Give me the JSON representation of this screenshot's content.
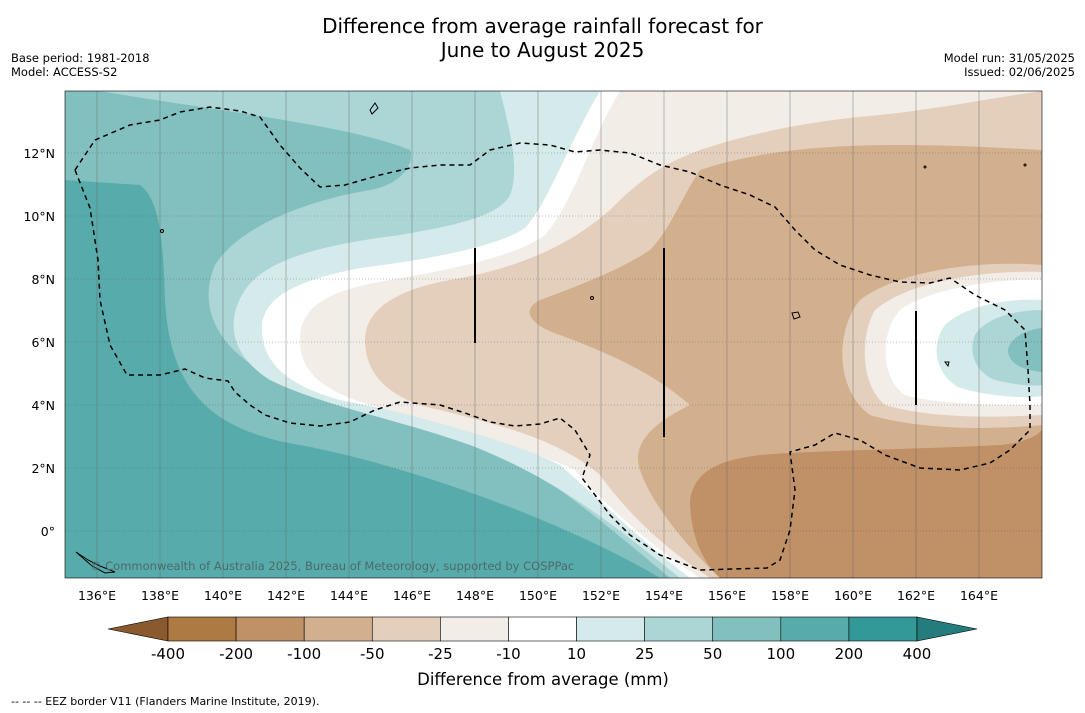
{
  "title_line1": "Difference from average rainfall forecast for",
  "title_line2": "June to August 2025",
  "meta": {
    "base_period": "Base period: 1981-2018",
    "model": "Model: ACCESS-S2",
    "model_run": "Model run: 31/05/2025",
    "issued": "Issued: 02/06/2025"
  },
  "map": {
    "x_ticks": [
      "136°E",
      "138°E",
      "140°E",
      "142°E",
      "144°E",
      "146°E",
      "148°E",
      "150°E",
      "152°E",
      "154°E",
      "156°E",
      "158°E",
      "160°E",
      "162°E",
      "164°E"
    ],
    "y_ticks": [
      "12°N",
      "10°N",
      "8°N",
      "6°N",
      "4°N",
      "2°N",
      "0°"
    ],
    "copyright": "© Commonwealth of Australia 2025, Bureau of Meteorology, supported by COSPPac"
  },
  "legend": {
    "ticks": [
      "-400",
      "-200",
      "-100",
      "-50",
      "-25",
      "-10",
      "10",
      "25",
      "50",
      "100",
      "200",
      "400"
    ],
    "colors": [
      "#8a5a2e",
      "#ae7a43",
      "#c09066",
      "#d2b08e",
      "#e4cfbd",
      "#f2ede7",
      "#ffffff",
      "#d5eaea",
      "#acd6d6",
      "#82bfbf",
      "#58abab",
      "#339898",
      "#257c7c"
    ],
    "label": "Difference from average (mm)"
  },
  "footnote": "--  --  -- EEZ border V11 (Flanders Marine Institute, 2019)."
}
